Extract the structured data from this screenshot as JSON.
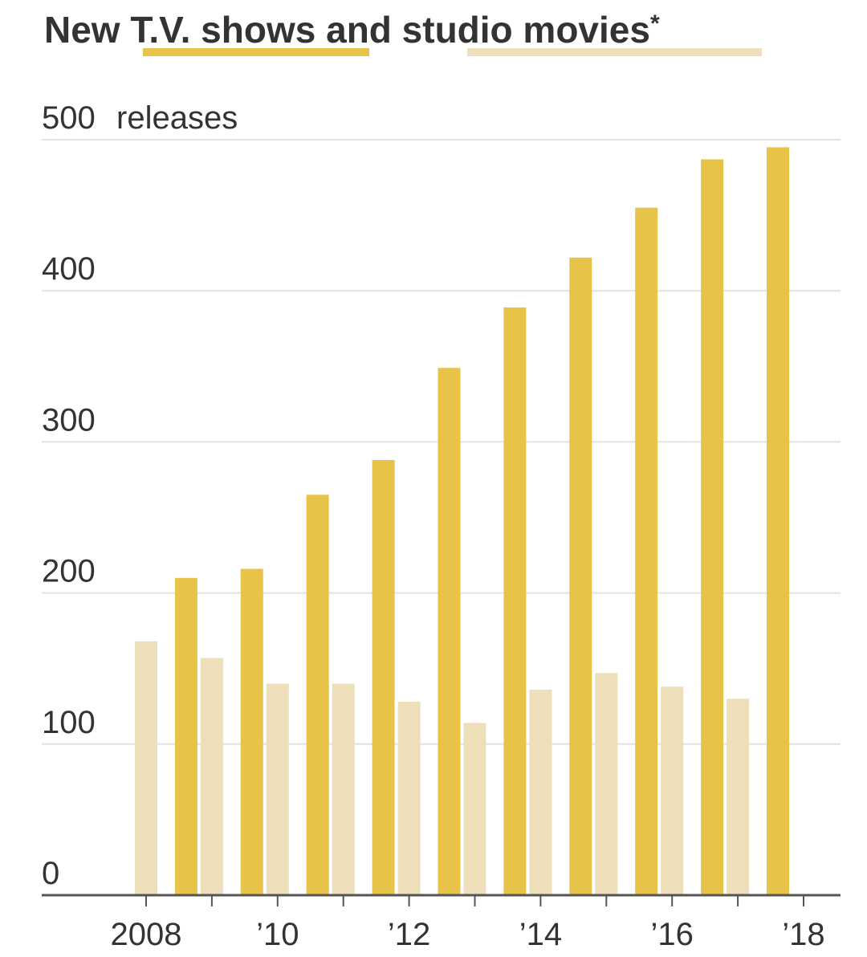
{
  "chart_data": {
    "type": "bar",
    "title": "New T.V. shows and studio movies*",
    "title_parts": {
      "prefix": "New ",
      "series_a_label": "T.V. shows",
      "middle": " and ",
      "series_b_label": "studio movies",
      "suffix": "*"
    },
    "ylabel": "releases",
    "ylim": [
      0,
      500
    ],
    "yticks": [
      0,
      100,
      200,
      300,
      400,
      500
    ],
    "ytick_labels": [
      "0",
      "100",
      "200",
      "300",
      "400",
      "500"
    ],
    "xtick_labels": [
      "2008",
      "’10",
      "’12",
      "’14",
      "’16",
      "’18"
    ],
    "x": [
      2008,
      2009,
      2010,
      2011,
      2012,
      2013,
      2014,
      2015,
      2016,
      2017,
      2018
    ],
    "series": [
      {
        "name": "T.V. shows",
        "color": "#e8c34a",
        "values": [
          null,
          210,
          216,
          265,
          288,
          349,
          389,
          422,
          455,
          487,
          495
        ]
      },
      {
        "name": "studio movies",
        "color": "#eddfb9",
        "values": [
          168,
          157,
          140,
          140,
          128,
          114,
          136,
          147,
          138,
          130,
          null
        ]
      }
    ],
    "grid": true,
    "legend": "embedded in title underlines"
  }
}
